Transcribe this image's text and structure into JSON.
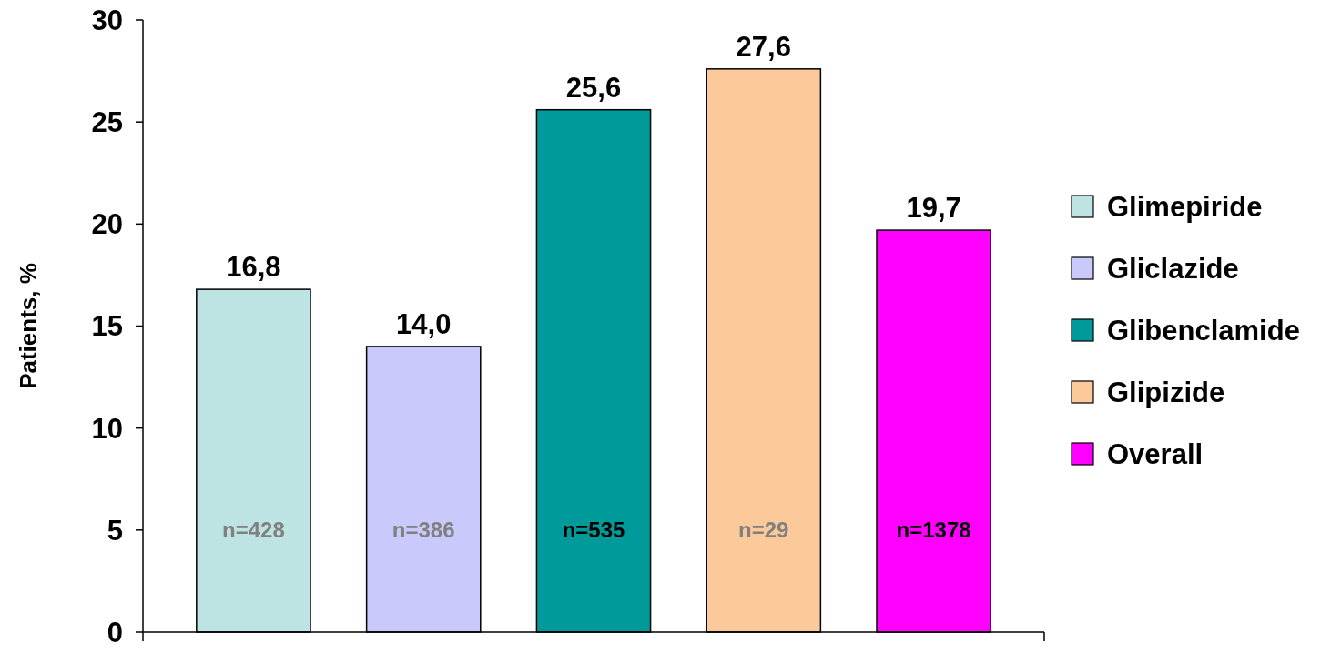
{
  "chart_data": {
    "type": "bar",
    "ylabel": "Patients, %",
    "categories": [
      null
    ],
    "series": [
      {
        "name": "Glimepiride",
        "color": "#bde3e3",
        "values": [
          16.8
        ],
        "value_labels": [
          "16,8"
        ]
      },
      {
        "name": "Gliclazide",
        "color": "#c9c9fb",
        "values": [
          14.0
        ],
        "value_labels": [
          "14,0"
        ]
      },
      {
        "name": "Glibenclamide",
        "color": "#009a9a",
        "values": [
          25.6
        ],
        "value_labels": [
          "25,6"
        ]
      },
      {
        "name": "Glipizide",
        "color": "#fcc99b",
        "values": [
          27.6
        ],
        "value_labels": [
          "27,6"
        ]
      },
      {
        "name": "Overall",
        "color": "#ff00ff",
        "values": [
          19.7
        ],
        "value_labels": [
          "19,7"
        ]
      }
    ],
    "annotations": [
      "n=428",
      "n=386",
      "n=535",
      "n=29",
      "n=1378"
    ],
    "ylim": [
      0,
      30
    ],
    "yticks": [
      0,
      5,
      10,
      15,
      20,
      25,
      30
    ],
    "grid": false,
    "legend": "right"
  }
}
